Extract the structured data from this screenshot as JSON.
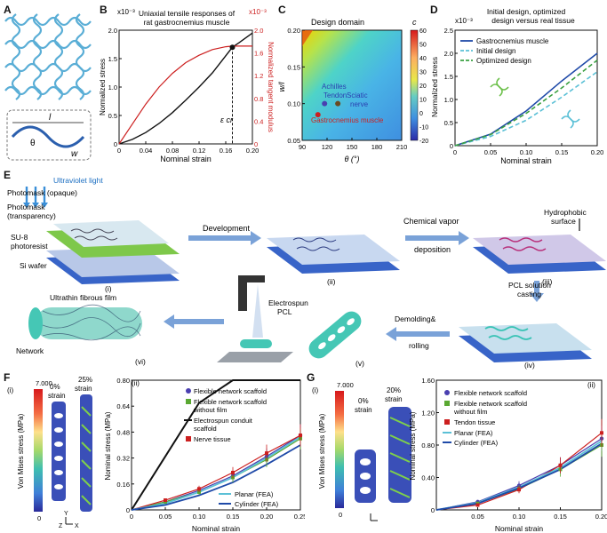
{
  "panel_letters": {
    "A": "A",
    "B": "B",
    "C": "C",
    "D": "D",
    "E": "E",
    "F": "F",
    "G": "G"
  },
  "panelA": {
    "l_label": "l",
    "theta_label": "θ",
    "w_label": "w"
  },
  "panelB": {
    "exp_label": "x10⁻³",
    "exp_label_right": "x10⁻³",
    "title_line1": "Uniaxial tensile responses of",
    "title_line2": "rat gastrocnemius muscle",
    "ylabel_left": "Normalized stress",
    "ylabel_right": "Normalized tangent modulus",
    "xlabel": "Nominal strain",
    "eps_label": "ε cr",
    "x_ticks": [
      "0",
      "0.04",
      "0.08",
      "0.12",
      "0.16",
      "0.20"
    ],
    "y_left_ticks": [
      "0",
      "0.5",
      "1.0",
      "1.5",
      "2.0"
    ],
    "y_right_ticks": [
      "0",
      "0.4",
      "0.8",
      "1.2",
      "1.6",
      "2.0"
    ]
  },
  "panelC": {
    "title": "Design domain",
    "cbar_title": "c",
    "ylabel": "w/l",
    "xlabel": "θ (°)",
    "x_ticks": [
      "90",
      "120",
      "150",
      "180",
      "210"
    ],
    "y_ticks": [
      "0.05",
      "0.10",
      "0.15",
      "0.20"
    ],
    "cbar_ticks": [
      "60",
      "50",
      "40",
      "30",
      "20",
      "10",
      "0",
      "-10",
      "-20"
    ],
    "labels": {
      "achilles": "Achilles",
      "tendon": "Tendon",
      "sciatic": "Sciatic",
      "nerve": "nerve",
      "gastro": "Gastrocnemius muscle"
    }
  },
  "panelD": {
    "title_line1": "Initial design, optimized",
    "title_line2": "design versus real tissue",
    "exp_label": "x10⁻³",
    "ylabel": "Normalized stress",
    "xlabel": "Nominal strain",
    "legend": [
      "Gastrocnemius muscle",
      "Initial design",
      "Optimized design"
    ],
    "x_ticks": [
      "0",
      "0.05",
      "0.10",
      "0.15",
      "0.20"
    ],
    "y_ticks": [
      "0",
      "0.5",
      "1.0",
      "1.5",
      "2.0",
      "2.5"
    ]
  },
  "panelE": {
    "uv": "Ultraviolet light",
    "photomask_opaque": "Photomask (opaque)",
    "photomask_transparency_1": "Photomask",
    "photomask_transparency_2": "(transparency)",
    "su8_1": "SU-8",
    "su8_2": "photoresist",
    "si": "Si wafer",
    "development": "Development",
    "cvd_1": "Chemical vapor",
    "cvd_2": "deposition",
    "hydrophobic_1": "Hydrophobic",
    "hydrophobic_2": "surface",
    "pcl_casting_1": "PCL solution",
    "pcl_casting_2": "casting",
    "demolding_1": "Demolding&",
    "demolding_2": "rolling",
    "electrospun_1": "Electrospun",
    "electrospun_2": "PCL",
    "ultrathin": "Ultrathin fibrous film",
    "network": "Network",
    "steps": [
      "(i)",
      "(ii)",
      "(iii)",
      "(iv)",
      "(v)",
      "(vi)"
    ]
  },
  "panelF": {
    "sub_i": "(i)",
    "sub_ii": "(ii)",
    "cbar_title": "Von Mises stress (MPa)",
    "cbar_max": "7.000",
    "cbar_min": "0",
    "strain0_1": "0%",
    "strain0_2": "strain",
    "strain1_1": "25%",
    "strain1_2": "strain",
    "axis_z": "Z",
    "axis_y": "Y",
    "axis_x": "X",
    "ylabel": "Nominal stress (MPa)",
    "xlabel": "Nominal strain",
    "x_ticks": [
      "0",
      "0.05",
      "0.10",
      "0.15",
      "0.20",
      "0.25"
    ],
    "y_ticks": [
      "0",
      "0.16",
      "0.32",
      "0.48",
      "0.64",
      "0.80"
    ],
    "legend": [
      "Flexible network scaffold",
      "Flexible network scaffold",
      "without film",
      "Electrospun conduit",
      "scaffold",
      "Nerve tissue",
      "Planar (FEA)",
      "Cylinder (FEA)"
    ]
  },
  "panelG": {
    "sub_i": "(i)",
    "sub_ii": "(ii)",
    "cbar_title": "Von Mises stress (MPa)",
    "cbar_max": "7.000",
    "cbar_min": "0",
    "strain0_1": "0%",
    "strain0_2": "strain",
    "strain1_1": "20%",
    "strain1_2": "strain",
    "ylabel": "Nominal stress (MPa)",
    "xlabel": "Nominal strain",
    "x_ticks": [
      "0.05",
      "0.10",
      "0.15",
      "0.20"
    ],
    "y_ticks": [
      "0",
      "0.40",
      "0.80",
      "1.20",
      "1.60"
    ],
    "legend": [
      "Flexible network scaffold",
      "Flexible network scaffold",
      "without film",
      "Tendon tissue",
      "Planar (FEA)",
      "Cylinder (FEA)"
    ]
  },
  "colors": {
    "black": "#111111",
    "red": "#cc1f1f",
    "blue": "#1f4aa8",
    "lightblue": "#5bc0d6",
    "green": "#5aa832",
    "purple": "#4a3fb0",
    "mesh_green": "#6cc04a"
  },
  "chart_data": [
    {
      "type": "line",
      "title": "Uniaxial tensile responses of rat gastrocnemius muscle",
      "xlabel": "Nominal strain",
      "ylabel": "Normalized stress",
      "xlim": [
        0,
        0.2
      ],
      "ylim": [
        0,
        2.0
      ],
      "x": [
        0,
        0.02,
        0.04,
        0.06,
        0.08,
        0.1,
        0.12,
        0.14,
        0.16,
        0.17,
        0.18,
        0.2
      ],
      "series": [
        {
          "name": "Normalized stress",
          "values": [
            0,
            0.08,
            0.2,
            0.36,
            0.55,
            0.77,
            1.0,
            1.25,
            1.55,
            1.7,
            1.78,
            1.95
          ]
        },
        {
          "name": "Normalized tangent modulus",
          "values": [
            0,
            0.35,
            0.7,
            1.0,
            1.24,
            1.43,
            1.56,
            1.66,
            1.71,
            1.72,
            1.72,
            1.72
          ]
        }
      ]
    },
    {
      "type": "heatmap",
      "title": "Design domain",
      "xlabel": "θ (°)",
      "ylabel": "w/l",
      "xlim": [
        90,
        210
      ],
      "ylim": [
        0.05,
        0.2
      ],
      "clim": [
        -20,
        60
      ],
      "points": [
        {
          "name": "Achilles Tendon",
          "x": 117,
          "y": 0.1
        },
        {
          "name": "Sciatic nerve",
          "x": 133,
          "y": 0.1
        },
        {
          "name": "Gastrocnemius muscle",
          "x": 109,
          "y": 0.085
        }
      ]
    },
    {
      "type": "line",
      "title": "Initial design, optimized design versus real tissue",
      "xlabel": "Nominal strain",
      "ylabel": "Normalized stress",
      "xlim": [
        0,
        0.2
      ],
      "ylim": [
        0,
        2.5
      ],
      "x": [
        0,
        0.05,
        0.1,
        0.15,
        0.2
      ],
      "series": [
        {
          "name": "Gastrocnemius muscle",
          "values": [
            0,
            0.25,
            0.75,
            1.4,
            2.0
          ]
        },
        {
          "name": "Initial design",
          "values": [
            0,
            0.2,
            0.55,
            1.05,
            1.6
          ]
        },
        {
          "name": "Optimized design",
          "values": [
            0,
            0.24,
            0.7,
            1.25,
            1.85
          ]
        }
      ]
    },
    {
      "type": "line",
      "xlabel": "Nominal strain",
      "ylabel": "Nominal stress (MPa)",
      "xlim": [
        0,
        0.25
      ],
      "ylim": [
        0,
        0.8
      ],
      "x": [
        0,
        0.05,
        0.1,
        0.15,
        0.2,
        0.25
      ],
      "series": [
        {
          "name": "Flexible network scaffold",
          "values": [
            0,
            0.05,
            0.12,
            0.21,
            0.33,
            0.46
          ]
        },
        {
          "name": "Flexible network scaffold without film",
          "values": [
            0,
            0.05,
            0.11,
            0.2,
            0.31,
            0.44
          ]
        },
        {
          "name": "Electrospun conduit scaffold",
          "values": [
            0,
            0.33,
            0.66,
            0.8,
            0.8,
            0.8
          ]
        },
        {
          "name": "Nerve tissue",
          "values": [
            0,
            0.06,
            0.13,
            0.23,
            0.35,
            0.46
          ]
        },
        {
          "name": "Planar (FEA)",
          "values": [
            0,
            0.04,
            0.11,
            0.2,
            0.32,
            0.45
          ]
        },
        {
          "name": "Cylinder (FEA)",
          "values": [
            0,
            0.03,
            0.09,
            0.17,
            0.28,
            0.4
          ]
        }
      ]
    },
    {
      "type": "line",
      "xlabel": "Nominal strain",
      "ylabel": "Nominal stress (MPa)",
      "xlim": [
        0,
        0.2
      ],
      "ylim": [
        0,
        1.6
      ],
      "x": [
        0,
        0.05,
        0.1,
        0.15,
        0.2
      ],
      "series": [
        {
          "name": "Flexible network scaffold",
          "values": [
            0,
            0.1,
            0.3,
            0.55,
            0.88
          ]
        },
        {
          "name": "Flexible network scaffold without film",
          "values": [
            0,
            0.08,
            0.26,
            0.5,
            0.8
          ]
        },
        {
          "name": "Tendon tissue",
          "values": [
            0,
            0.06,
            0.25,
            0.55,
            0.95
          ]
        },
        {
          "name": "Planar (FEA)",
          "values": [
            0,
            0.09,
            0.28,
            0.52,
            0.85
          ]
        },
        {
          "name": "Cylinder (FEA)",
          "values": [
            0,
            0.08,
            0.27,
            0.5,
            0.82
          ]
        }
      ]
    }
  ]
}
